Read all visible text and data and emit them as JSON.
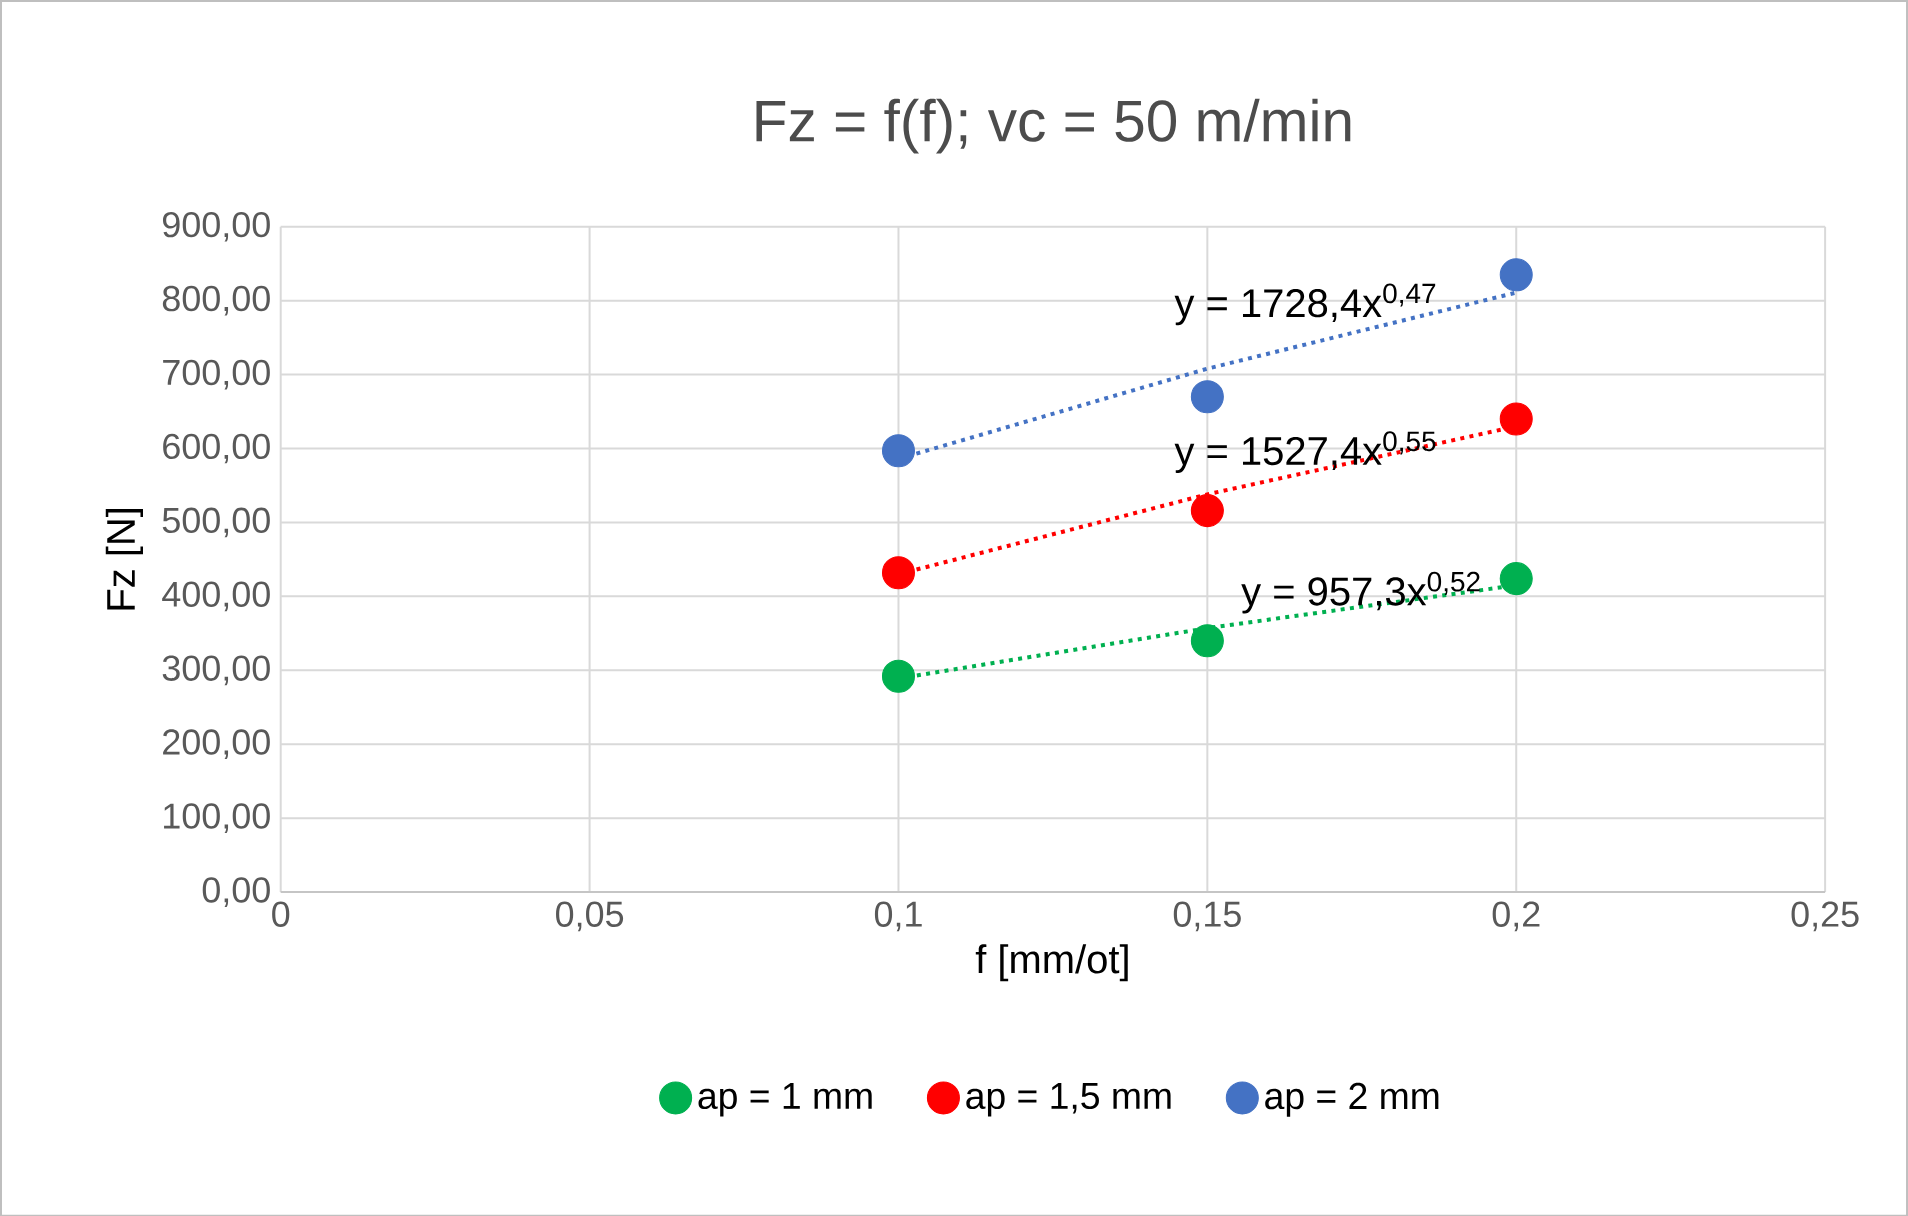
{
  "chart_data": {
    "type": "scatter",
    "title": "Fz = f(f); vc = 50 m/min",
    "xlabel": "f [mm/ot]",
    "ylabel": "Fz [N]",
    "xlim": [
      0,
      0.25
    ],
    "xticks": [
      0,
      {
        "value": 0.05,
        "label": "0,05"
      },
      {
        "value": 0.1,
        "label": "0,1"
      },
      {
        "value": 0.15,
        "label": "0,15"
      },
      {
        "value": 0.2,
        "label": "0,2"
      },
      {
        "value": 0.25,
        "label": "0,25"
      }
    ],
    "ylim": [
      0,
      900
    ],
    "yticks": [
      {
        "value": 0,
        "label": "0,00"
      },
      {
        "value": 100,
        "label": "100,00"
      },
      {
        "value": 200,
        "label": "200,00"
      },
      {
        "value": 300,
        "label": "300,00"
      },
      {
        "value": 400,
        "label": "400,00"
      },
      {
        "value": 500,
        "label": "500,00"
      },
      {
        "value": 600,
        "label": "600,00"
      },
      {
        "value": 700,
        "label": "700,00"
      },
      {
        "value": 800,
        "label": "800,00"
      },
      {
        "value": 900,
        "label": "900,00"
      }
    ],
    "grid": true,
    "legend": "bottom",
    "marker": "circle",
    "series": [
      {
        "name": "ap = 1 mm",
        "color": "#00b050",
        "x": [
          0.1,
          0.15,
          0.2
        ],
        "values": [
          292,
          340,
          424
        ]
      },
      {
        "name": "ap = 1,5 mm",
        "color": "#ff0000",
        "x": [
          0.1,
          0.15,
          0.2
        ],
        "values": [
          432,
          516,
          640
        ]
      },
      {
        "name": "ap = 2 mm",
        "color": "#4472c4",
        "x": [
          0.1,
          0.15,
          0.2
        ],
        "values": [
          597,
          670,
          835
        ]
      },
      {
        "type": "line",
        "color": "#00b050",
        "line_style": "dotted",
        "marker": "none",
        "x": [
          0.1,
          0.15,
          0.2
        ],
        "values": [
          289,
          357,
          415
        ]
      },
      {
        "type": "line",
        "color": "#ff0000",
        "line_style": "dotted",
        "marker": "none",
        "x": [
          0.1,
          0.15,
          0.2
        ],
        "values": [
          430,
          538,
          630
        ]
      },
      {
        "type": "line",
        "color": "#4472c4",
        "line_style": "dotted",
        "marker": "none",
        "x": [
          0.1,
          0.15,
          0.2
        ],
        "values": [
          586,
          708,
          811
        ]
      }
    ],
    "annotations": [
      "y = 1728,4x$^{0,47}$",
      "y = 1527,4x$^{0,55}$",
      "y = 957,3x$^{0,52}$"
    ]
  }
}
